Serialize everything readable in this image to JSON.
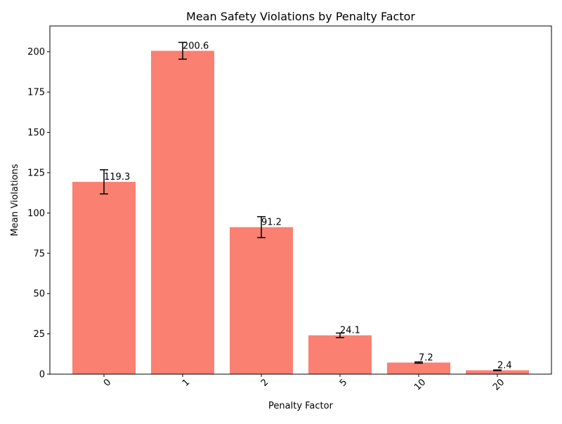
{
  "chart_data": {
    "type": "bar",
    "title": "Mean Safety Violations by Penalty Factor",
    "xlabel": "Penalty Factor",
    "ylabel": "Mean Violations",
    "categories": [
      "0",
      "1",
      "2",
      "5",
      "10",
      "20"
    ],
    "values": [
      119.3,
      200.6,
      91.2,
      24.1,
      7.2,
      2.4
    ],
    "value_labels": [
      "119.3",
      "200.6",
      "91.2",
      "24.1",
      "7.2",
      "2.4"
    ],
    "errors": [
      7.5,
      5.2,
      6.5,
      1.4,
      0.4,
      0.2
    ],
    "ylim": [
      0,
      216
    ],
    "yticks": [
      0,
      25,
      50,
      75,
      100,
      125,
      150,
      175,
      200
    ],
    "ytick_labels": [
      "0",
      "25",
      "50",
      "75",
      "100",
      "125",
      "150",
      "175",
      "200"
    ],
    "bar_color": "#fa8072",
    "error_color": "#000000",
    "grid": false,
    "legend": "none",
    "xtick_rotation_deg": 45
  }
}
